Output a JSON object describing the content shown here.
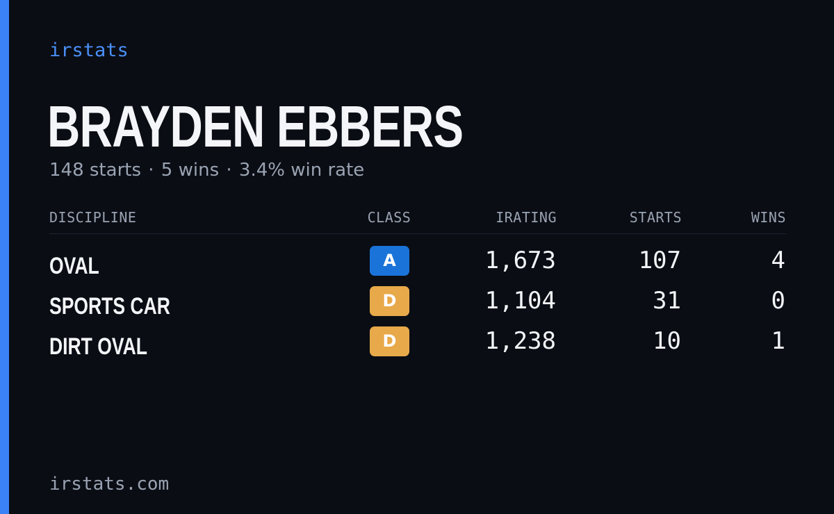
{
  "brand": "irstats",
  "driver": {
    "name": "BRAYDEN EBBERS",
    "summary": {
      "starts": "148 starts",
      "wins": "5 wins",
      "win_rate": "3.4% win rate",
      "separator": "·"
    }
  },
  "table": {
    "headers": {
      "discipline": "DISCIPLINE",
      "class": "CLASS",
      "irating": "IRATING",
      "starts": "STARTS",
      "wins": "WINS"
    },
    "rows": [
      {
        "discipline": "OVAL",
        "class": "A",
        "class_color": "#1a73d9",
        "irating": "1,673",
        "starts": "107",
        "wins": "4"
      },
      {
        "discipline": "SPORTS CAR",
        "class": "D",
        "class_color": "#e8a94a",
        "irating": "1,104",
        "starts": "31",
        "wins": "0"
      },
      {
        "discipline": "DIRT OVAL",
        "class": "D",
        "class_color": "#e8a94a",
        "irating": "1,238",
        "starts": "10",
        "wins": "1"
      }
    ]
  },
  "footer": "irstats.com",
  "colors": {
    "background": "#0a0d14",
    "accent": "#3b82f6",
    "brand_text": "#4a8ff7",
    "muted_text": "#9aa3b2",
    "primary_text": "#f3f5f8"
  }
}
